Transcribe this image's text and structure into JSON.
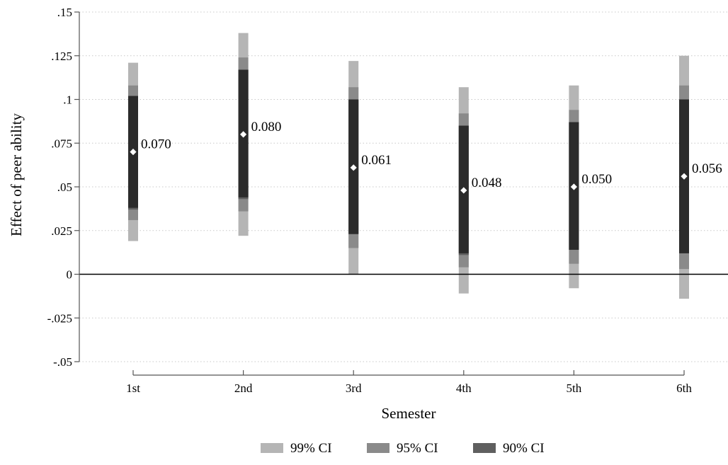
{
  "chart_data": {
    "type": "errorbar",
    "xlabel": "Semester",
    "ylabel": "Effect of peer ability",
    "ylim": [
      -0.05,
      0.15
    ],
    "yticks": [
      {
        "value": 0.15,
        "label": ".15"
      },
      {
        "value": 0.125,
        "label": ".125"
      },
      {
        "value": 0.1,
        "label": ".1"
      },
      {
        "value": 0.075,
        "label": ".075"
      },
      {
        "value": 0.05,
        "label": ".05"
      },
      {
        "value": 0.025,
        "label": ".025"
      },
      {
        "value": 0,
        "label": "0"
      },
      {
        "value": -0.025,
        "label": "-.025"
      },
      {
        "value": -0.05,
        "label": "-.05"
      }
    ],
    "grid": true,
    "reference_line": 0,
    "categories": [
      "1st",
      "2nd",
      "3rd",
      "4th",
      "5th",
      "6th"
    ],
    "estimates": [
      0.07,
      0.08,
      0.061,
      0.048,
      0.05,
      0.056
    ],
    "estimate_labels": [
      "0.070",
      "0.080",
      "0.061",
      "0.048",
      "0.050",
      "0.056"
    ],
    "intervals": [
      {
        "name": "99% CI",
        "color": "#b5b5b5",
        "lower": [
          0.019,
          0.022,
          0.0,
          -0.011,
          -0.008,
          -0.014
        ],
        "upper": [
          0.121,
          0.138,
          0.122,
          0.107,
          0.108,
          0.125
        ]
      },
      {
        "name": "95% CI",
        "color": "#8a8a8a",
        "lower": [
          0.031,
          0.036,
          0.015,
          0.004,
          0.006,
          0.003
        ],
        "upper": [
          0.108,
          0.124,
          0.107,
          0.092,
          0.094,
          0.108
        ]
      },
      {
        "name": "90% CI",
        "color": "#5f5f5f",
        "lower": [
          0.037,
          0.043,
          0.023,
          0.011,
          0.014,
          0.012
        ],
        "upper": [
          0.102,
          0.117,
          0.1,
          0.085,
          0.087,
          0.1
        ]
      }
    ],
    "inner_band": {
      "color": "#2b2b2b",
      "lower": [
        0.038,
        0.044,
        0.023,
        0.012,
        0.014,
        0.012
      ],
      "upper": [
        0.102,
        0.117,
        0.1,
        0.085,
        0.087,
        0.1
      ]
    },
    "legend": {
      "position": "bottom",
      "entries": [
        "99% CI",
        "95% CI",
        "90% CI"
      ]
    }
  }
}
